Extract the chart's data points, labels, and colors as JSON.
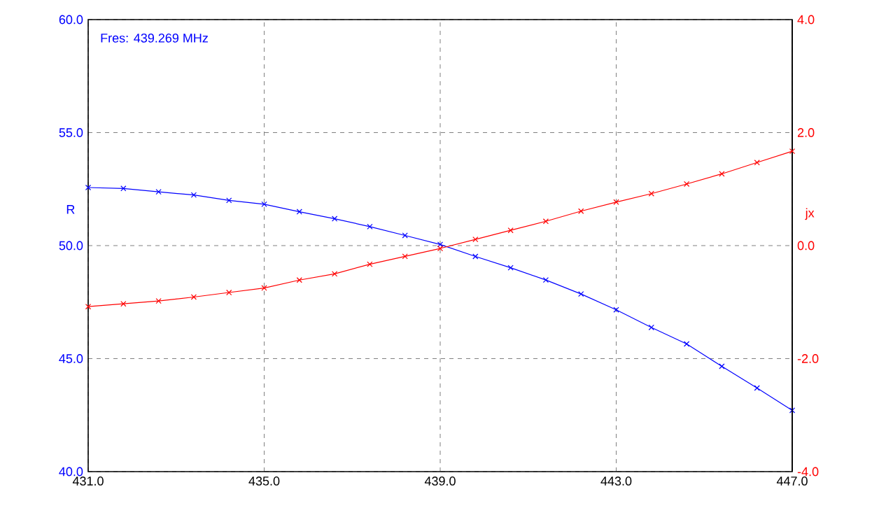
{
  "chart_data": {
    "type": "line",
    "ylabel": "R",
    "y2label": "jx",
    "annotations": [
      "Fres: 439.269 MHz"
    ],
    "x": [
      431,
      431.8,
      432.6,
      433.4,
      434.2,
      435,
      435.8,
      436.6,
      437.4,
      438.2,
      439,
      439.8,
      440.6,
      441.4,
      442.2,
      443,
      443.8,
      444.6,
      445.4,
      446.2,
      447
    ],
    "series": [
      {
        "color": "#0000ff",
        "values": [
          52.57,
          52.53,
          52.38,
          52.24,
          52.0,
          51.83,
          51.5,
          51.19,
          50.84,
          50.45,
          50.05,
          49.52,
          49.02,
          48.48,
          47.86,
          47.16,
          46.38,
          45.65,
          44.66,
          43.7,
          42.71
        ]
      },
      {
        "color": "#ff0000",
        "axis": "y2",
        "values": [
          -1.08,
          -1.03,
          -0.98,
          -0.91,
          -0.83,
          -0.75,
          -0.61,
          -0.5,
          -0.33,
          -0.19,
          -0.05,
          0.11,
          0.27,
          0.43,
          0.61,
          0.77,
          0.92,
          1.09,
          1.27,
          1.47,
          1.67
        ]
      }
    ],
    "xlim": [
      431,
      447
    ],
    "ylim": [
      40,
      60
    ],
    "y2lim": [
      -4,
      4
    ],
    "xticks": [
      {
        "value": 431,
        "label": "431.0"
      },
      {
        "value": 435,
        "label": "435.0"
      },
      {
        "value": 439,
        "label": "439.0"
      },
      {
        "value": 443,
        "label": "443.0"
      },
      {
        "value": 447,
        "label": "447.0"
      }
    ],
    "yticks": [
      {
        "value": 40,
        "label": "40.0"
      },
      {
        "value": 45,
        "label": "45.0"
      },
      {
        "value": 50,
        "label": "50.0"
      },
      {
        "value": 55,
        "label": "55.0"
      },
      {
        "value": 60,
        "label": "60.0"
      }
    ],
    "y2ticks": [
      {
        "value": -4,
        "label": "-4.0"
      },
      {
        "value": -2,
        "label": "-2.0"
      },
      {
        "value": 0,
        "label": "0.0"
      },
      {
        "value": 2,
        "label": "2.0"
      },
      {
        "value": 4,
        "label": "4.0"
      }
    ],
    "grid": true,
    "marker": "cross",
    "line_style": "solid"
  }
}
